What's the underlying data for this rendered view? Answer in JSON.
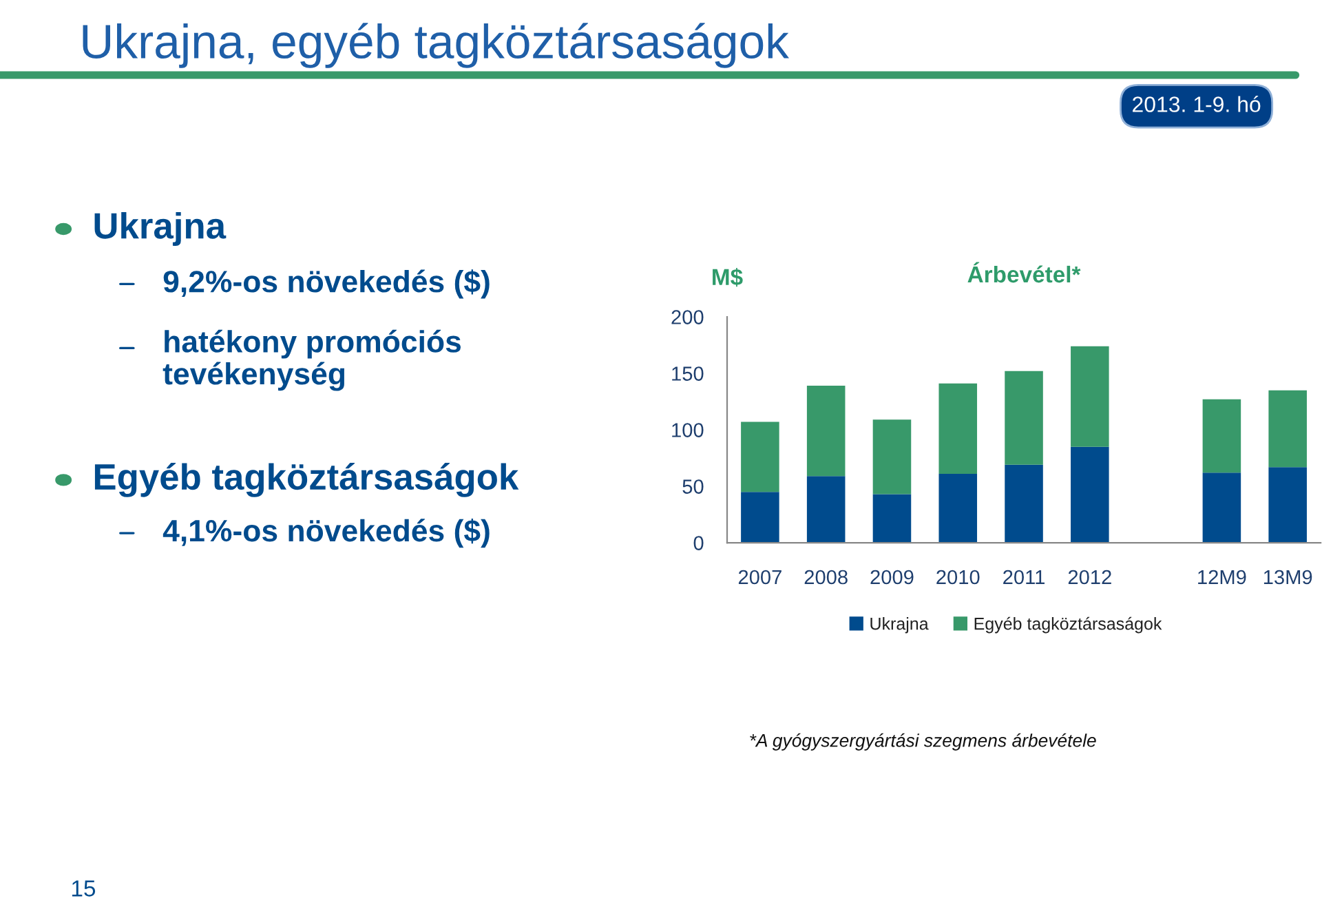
{
  "chart_data": {
    "type": "bar",
    "title": "Árbevétel*",
    "ylabel": "M$",
    "categories": [
      "2007",
      "2008",
      "2009",
      "2010",
      "2011",
      "2012",
      null,
      "12M9",
      "13M9"
    ],
    "stacked": true,
    "series": [
      {
        "name": "Ukrajna",
        "color": "#004b8d",
        "values": [
          45,
          59,
          43,
          61,
          69,
          85,
          null,
          62,
          67
        ]
      },
      {
        "name": "Egyéb tagköztársaságok",
        "color": "#38996a",
        "values": [
          62,
          80,
          66,
          80,
          83,
          89,
          null,
          65,
          68
        ]
      }
    ],
    "ylim": [
      0,
      200
    ],
    "yticks": [
      0,
      50,
      100,
      150,
      200
    ],
    "grid": false,
    "legend": "bottom",
    "annotations": [
      "Ukrajna, egyéb tagköztársaságok",
      "2013. 1-9. hó",
      "Ukrajna",
      "9,2%-os növekedés ($)",
      "hatékony promóciós\ntevékenység",
      "Egyéb tagköztársaságok",
      "4,1%-os növekedés ($)",
      "*A gyógyszergyártási szegmens árbevétele",
      "15"
    ]
  }
}
